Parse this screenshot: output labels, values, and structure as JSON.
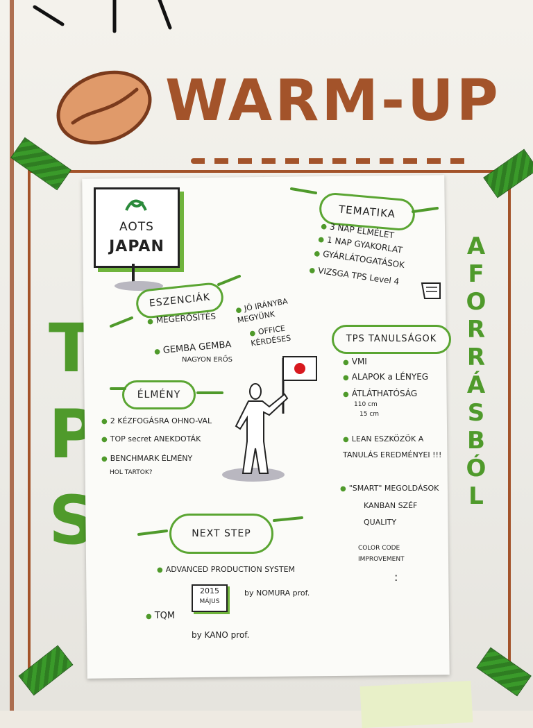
{
  "title": "WARM-UP",
  "sign": {
    "line1": "AOTS",
    "line2": "JAPAN"
  },
  "left_vertical": "TPS",
  "right_vertical": "A FORRÁSBÓL",
  "tematika": {
    "label": "TEMATIKA",
    "items": [
      "3 NAP ELMÉLET",
      "1 NAP GYAKORLAT",
      "GYÁRLÁTOGATÁSOK",
      "VIZSGA TPS Level 4"
    ]
  },
  "eszenciak": {
    "label": "ESZENCIÁK",
    "items": [
      "MEGERŐSÍTÉS",
      "GEMBA GEMBA",
      "NAGYON ERŐS",
      "JÓ IRÁNYBA MEGYÜNK",
      "OFFICE KÉRDÉSES"
    ]
  },
  "elmeny": {
    "label": "ÉLMÉNY",
    "items": [
      "2 KÉZFOGÁSRA OHNO-VAL",
      "TOP secret ANEKDOTÁK",
      "BENCHMARK ÉLMÉNY",
      "HOL TARTOK?"
    ]
  },
  "tps_tanulsagok": {
    "label": "TPS TANULSÁGOK",
    "items": [
      "VMI",
      "ALAPOK a LÉNYEG",
      "ÁTLÁTHATÓSÁG",
      "110 cm",
      "15 cm",
      "LEAN ESZKÖZÖK A TANULÁS EREDMÉNYEI !!!",
      "\"SMART\" MEGOLDÁSOK",
      "KANBAN SZÉF",
      "QUALITY",
      "COLOR CODE IMPROVEMENT",
      ":"
    ]
  },
  "next_step": {
    "label": "NEXT STEP",
    "items": [
      "ADVANCED PRODUCTION SYSTEM",
      "by NOMURA prof.",
      "TQM",
      "by KANO prof."
    ],
    "calendar": {
      "year": "2015",
      "month": "MÁJUS"
    }
  },
  "colors": {
    "brown": "#a3532a",
    "green": "#4f9a2b",
    "flag_red": "#d8191f"
  }
}
